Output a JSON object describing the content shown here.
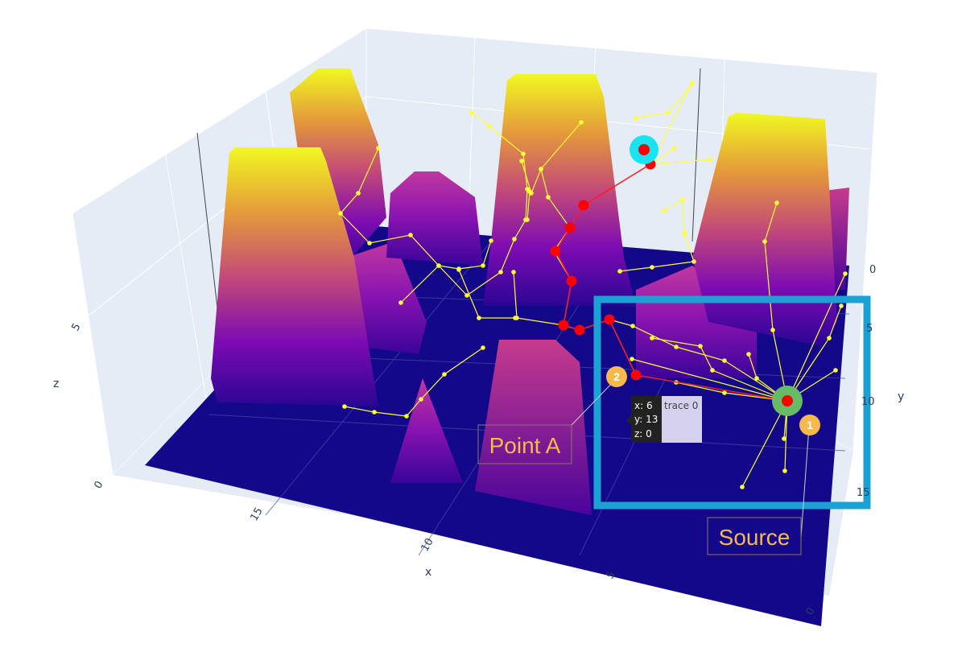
{
  "chart_data": {
    "type": "surface",
    "title": "",
    "scene": {
      "xlabel": "x",
      "ylabel": "y",
      "zlabel": "z",
      "x_ticks": [
        "0",
        "5",
        "10",
        "15"
      ],
      "y_ticks": [
        "0",
        "5",
        "10",
        "15"
      ],
      "z_ticks": [
        "0",
        "5"
      ],
      "background": "#e5ecf6",
      "colorscale": "Plasma"
    },
    "surface": {
      "name": "trace 0",
      "description_heights": "piecewise plateaus (tall peaks ~9, medium blocks ~3-4, floor 0)"
    },
    "graph_edges_color": "#ffff33",
    "path_color": "#ff0000",
    "start_marker_color": "#19e3f0",
    "source_marker_color": "#66bb66",
    "highlight_box_color": "#1ba1d4",
    "hover": {
      "x_line": "x: 6",
      "y_line": "y: 13",
      "z_line": "z: 0",
      "trace": "trace 0"
    },
    "annotations": [
      {
        "label": "Point A",
        "badge": "2"
      },
      {
        "label": "Source",
        "badge": "1"
      }
    ]
  }
}
